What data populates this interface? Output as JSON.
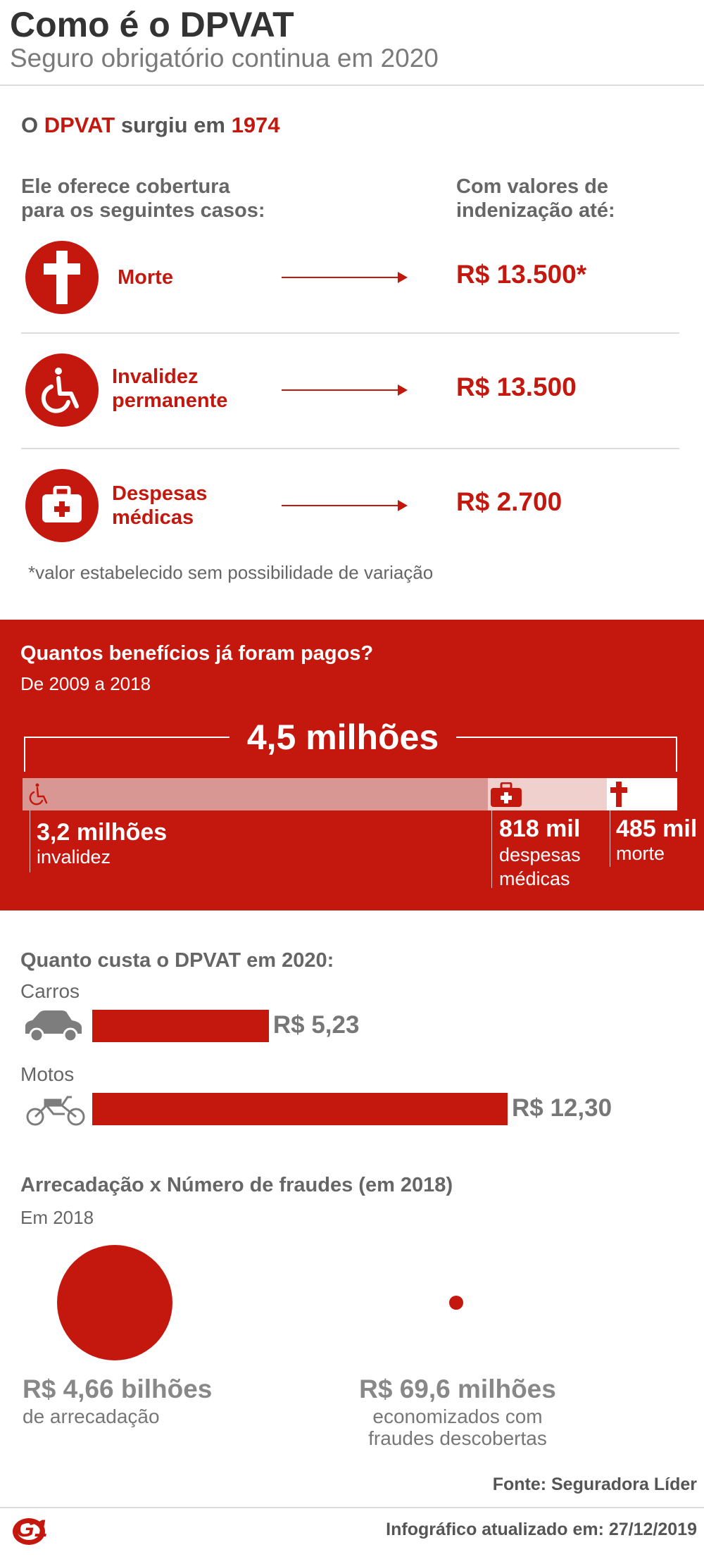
{
  "header": {
    "title": "Como é o DPVAT",
    "subtitle": "Seguro obrigatório continua em 2020"
  },
  "intro": {
    "prefix": "O ",
    "name": "DPVAT",
    "middle": " surgiu em ",
    "year": "1974"
  },
  "coverage": {
    "left_heading_l1": "Ele oferece cobertura",
    "left_heading_l2": "para os seguintes casos:",
    "right_heading_l1": "Com valores de",
    "right_heading_l2": "indenização até:",
    "items": [
      {
        "label_l1": "Morte",
        "label_l2": "",
        "value": "R$ 13.500*",
        "icon": "cross-icon"
      },
      {
        "label_l1": "Invalidez",
        "label_l2": "permanente",
        "value": "R$ 13.500",
        "icon": "wheelchair-icon"
      },
      {
        "label_l1": "Despesas",
        "label_l2": "médicas",
        "value": "R$ 2.700",
        "icon": "medical-kit-icon"
      }
    ],
    "footnote": "*valor estabelecido sem possibilidade de variação"
  },
  "benefits": {
    "title": "Quantos benefícios já foram pagos?",
    "period": "De 2009 a 2018",
    "total": "4,5 milhões",
    "segments": [
      {
        "value": "3,2 milhões",
        "label_l1": "invalidez",
        "label_l2": "",
        "icon": "wheelchair-icon",
        "millions": 3.2
      },
      {
        "value": "818 mil",
        "label_l1": "despesas",
        "label_l2": "médicas",
        "icon": "medical-kit-icon",
        "millions": 0.818
      },
      {
        "value": "485 mil",
        "label_l1": "morte",
        "label_l2": "",
        "icon": "cross-icon",
        "millions": 0.485
      }
    ],
    "colors": {
      "band": "#c4180f",
      "seg1": "#d99793",
      "seg2": "#efd0cd",
      "seg3": "#ffffff"
    }
  },
  "cost": {
    "title": "Quanto custa o DPVAT em 2020:",
    "items": [
      {
        "label": "Carros",
        "value": "R$ 5,23",
        "amount": 5.23,
        "icon": "car-icon"
      },
      {
        "label": "Motos",
        "value": "R$ 12,30",
        "amount": 12.3,
        "icon": "motorcycle-icon"
      }
    ]
  },
  "fraud": {
    "title": "Arrecadação x Número de fraudes (em 2018)",
    "subtitle": "Em 2018",
    "left": {
      "value": "R$ 4,66 bilhões",
      "desc_l1": "de arrecadação",
      "desc_l2": "",
      "amount_millions": 4660
    },
    "right": {
      "value": "R$ 69,6 milhões",
      "desc_l1": "economizados com",
      "desc_l2": "fraudes descobertas",
      "amount_millions": 69.6
    }
  },
  "footer": {
    "source": "Fonte: Seguradora Líder",
    "updated": "Infográfico atualizado em: 27/12/2019",
    "logo": "G1"
  },
  "accent": "#c4180f"
}
